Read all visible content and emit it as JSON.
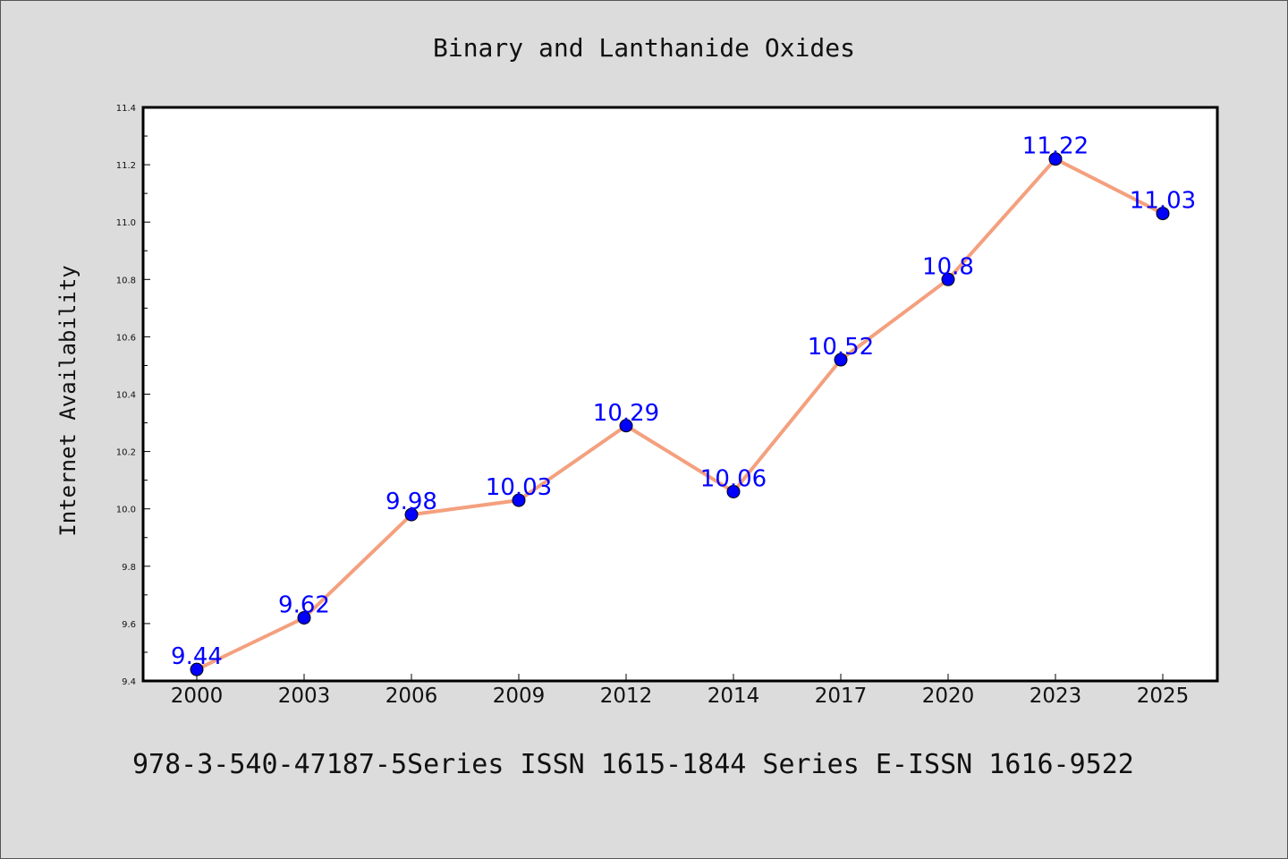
{
  "chart_data": {
    "type": "line",
    "title": "Binary and Lanthanide Oxides",
    "ylabel": "Internet Availability",
    "xlabel": "",
    "categories": [
      "2000",
      "2003",
      "2006",
      "2009",
      "2012",
      "2014",
      "2017",
      "2020",
      "2023",
      "2025"
    ],
    "series": [
      {
        "values": [
          9.44,
          9.62,
          9.98,
          10.03,
          10.29,
          10.06,
          10.52,
          10.8,
          11.22,
          11.03
        ],
        "data_labels": [
          "9.44",
          "9.62",
          "9.98",
          "10.03",
          "10.29",
          "10.06",
          "10.52",
          "10.8",
          "11.22",
          "11.03"
        ],
        "line_color": "#f4a07e",
        "marker_color": "#0000ff"
      }
    ],
    "yticks": [
      "9.4",
      "9.6",
      "9.8",
      "10.0",
      "10.2",
      "10.4",
      "10.6",
      "10.8",
      "11.0",
      "11.2",
      "11.4"
    ],
    "ylim": [
      9.4,
      11.4
    ],
    "grid": false,
    "legend": "none"
  },
  "footer": {
    "text": "978-3-540-47187-5Series ISSN 1615-1844 Series E-ISSN 1616-9522"
  },
  "colors": {
    "background": "#dcdcdc",
    "plot_background": "#ffffff",
    "axis": "#000000"
  }
}
